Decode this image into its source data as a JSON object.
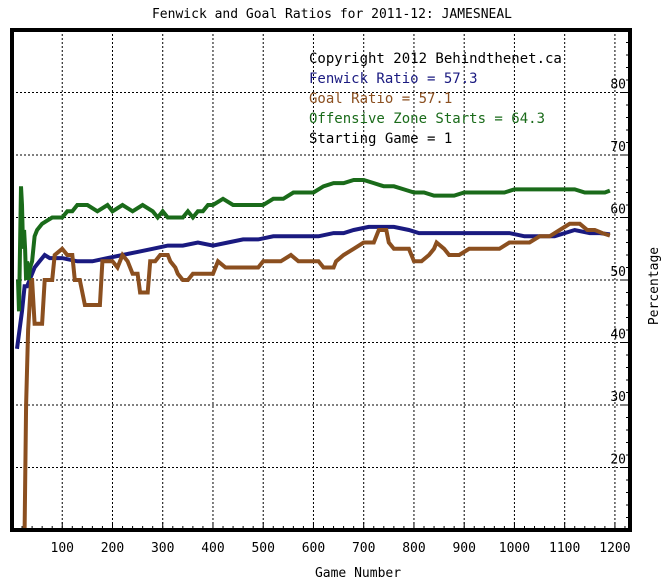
{
  "chart_data": {
    "type": "line",
    "title": "Fenwick and Goal Ratios for 2011-12: JAMESNEAL",
    "xlabel": "Game Number",
    "ylabel": "Percentage",
    "xlim": [
      0,
      1230
    ],
    "ylim": [
      10,
      90
    ],
    "x_ticks": [
      100,
      200,
      300,
      400,
      500,
      600,
      700,
      800,
      900,
      1000,
      1100,
      1200
    ],
    "y_ticks": [
      20,
      30,
      40,
      50,
      60,
      70,
      80
    ],
    "grid": true,
    "legend": {
      "position": "top-right",
      "lines": [
        {
          "text": "Copyright 2012 Behindthenet.ca",
          "color": "#000000"
        },
        {
          "text": "Fenwick Ratio = 57.3",
          "color": "#1a1a80"
        },
        {
          "text": "Goal Ratio = 57.1",
          "color": "#8b4f1f"
        },
        {
          "text": "Offensive Zone Starts = 64.3",
          "color": "#1a6b1a"
        },
        {
          "text": "Starting Game = 1",
          "color": "#000000"
        }
      ]
    },
    "series": [
      {
        "name": "Fenwick Ratio",
        "color": "#1a1a80",
        "points": [
          [
            10,
            39
          ],
          [
            15,
            42
          ],
          [
            20,
            45
          ],
          [
            25,
            49
          ],
          [
            30,
            49
          ],
          [
            35,
            50
          ],
          [
            45,
            52
          ],
          [
            55,
            53
          ],
          [
            65,
            54
          ],
          [
            75,
            53.5
          ],
          [
            100,
            53.5
          ],
          [
            130,
            53
          ],
          [
            160,
            53
          ],
          [
            190,
            53.5
          ],
          [
            220,
            54
          ],
          [
            250,
            54.5
          ],
          [
            280,
            55
          ],
          [
            310,
            55.5
          ],
          [
            340,
            55.5
          ],
          [
            370,
            56
          ],
          [
            400,
            55.5
          ],
          [
            430,
            56
          ],
          [
            460,
            56.5
          ],
          [
            490,
            56.5
          ],
          [
            520,
            57
          ],
          [
            550,
            57
          ],
          [
            580,
            57
          ],
          [
            610,
            57
          ],
          [
            640,
            57.5
          ],
          [
            660,
            57.5
          ],
          [
            680,
            58
          ],
          [
            710,
            58.5
          ],
          [
            730,
            58.5
          ],
          [
            760,
            58.5
          ],
          [
            790,
            58
          ],
          [
            810,
            57.5
          ],
          [
            840,
            57.5
          ],
          [
            870,
            57.5
          ],
          [
            900,
            57.5
          ],
          [
            930,
            57.5
          ],
          [
            960,
            57.5
          ],
          [
            990,
            57.5
          ],
          [
            1020,
            57
          ],
          [
            1050,
            57
          ],
          [
            1080,
            57
          ],
          [
            1100,
            57.5
          ],
          [
            1120,
            58
          ],
          [
            1150,
            57.5
          ],
          [
            1170,
            57.5
          ],
          [
            1190,
            57.3
          ]
        ]
      },
      {
        "name": "Goal Ratio",
        "color": "#8b4f1f",
        "points": [
          [
            25,
            10
          ],
          [
            28,
            30
          ],
          [
            32,
            42
          ],
          [
            35,
            46
          ],
          [
            38,
            50
          ],
          [
            40,
            50
          ],
          [
            45,
            43
          ],
          [
            60,
            43
          ],
          [
            65,
            50
          ],
          [
            80,
            50
          ],
          [
            85,
            54
          ],
          [
            100,
            55
          ],
          [
            110,
            54
          ],
          [
            120,
            54
          ],
          [
            125,
            50
          ],
          [
            135,
            50
          ],
          [
            145,
            46
          ],
          [
            175,
            46
          ],
          [
            180,
            53
          ],
          [
            200,
            53
          ],
          [
            210,
            52
          ],
          [
            215,
            53
          ],
          [
            220,
            54
          ],
          [
            230,
            53
          ],
          [
            240,
            51
          ],
          [
            250,
            51
          ],
          [
            255,
            48
          ],
          [
            270,
            48
          ],
          [
            275,
            53
          ],
          [
            285,
            53
          ],
          [
            295,
            54
          ],
          [
            310,
            54
          ],
          [
            315,
            53
          ],
          [
            325,
            52
          ],
          [
            330,
            51
          ],
          [
            340,
            50
          ],
          [
            350,
            50
          ],
          [
            360,
            51
          ],
          [
            375,
            51
          ],
          [
            390,
            51
          ],
          [
            400,
            51
          ],
          [
            405,
            52
          ],
          [
            410,
            53
          ],
          [
            425,
            52
          ],
          [
            440,
            52
          ],
          [
            460,
            52
          ],
          [
            475,
            52
          ],
          [
            490,
            52
          ],
          [
            500,
            53
          ],
          [
            515,
            53
          ],
          [
            535,
            53
          ],
          [
            555,
            54
          ],
          [
            570,
            53
          ],
          [
            590,
            53
          ],
          [
            610,
            53
          ],
          [
            620,
            52
          ],
          [
            640,
            52
          ],
          [
            645,
            53
          ],
          [
            660,
            54
          ],
          [
            680,
            55
          ],
          [
            700,
            56
          ],
          [
            720,
            56
          ],
          [
            730,
            58
          ],
          [
            745,
            58
          ],
          [
            750,
            56
          ],
          [
            760,
            55
          ],
          [
            770,
            55
          ],
          [
            790,
            55
          ],
          [
            800,
            53
          ],
          [
            815,
            53
          ],
          [
            830,
            54
          ],
          [
            840,
            55
          ],
          [
            845,
            56
          ],
          [
            860,
            55
          ],
          [
            870,
            54
          ],
          [
            890,
            54
          ],
          [
            910,
            55
          ],
          [
            930,
            55
          ],
          [
            950,
            55
          ],
          [
            970,
            55
          ],
          [
            990,
            56
          ],
          [
            1010,
            56
          ],
          [
            1030,
            56
          ],
          [
            1050,
            57
          ],
          [
            1070,
            57
          ],
          [
            1090,
            58
          ],
          [
            1110,
            59
          ],
          [
            1130,
            59
          ],
          [
            1145,
            58
          ],
          [
            1160,
            58
          ],
          [
            1175,
            57.5
          ],
          [
            1190,
            57.1
          ]
        ]
      },
      {
        "name": "Offensive Zone Starts",
        "color": "#1a6b1a",
        "points": [
          [
            12,
            50
          ],
          [
            14,
            45
          ],
          [
            16,
            55
          ],
          [
            18,
            65
          ],
          [
            20,
            62
          ],
          [
            22,
            55
          ],
          [
            24,
            58
          ],
          [
            26,
            55
          ],
          [
            28,
            50
          ],
          [
            30,
            53
          ],
          [
            33,
            50
          ],
          [
            36,
            52
          ],
          [
            40,
            53
          ],
          [
            45,
            57
          ],
          [
            50,
            58
          ],
          [
            60,
            59
          ],
          [
            70,
            59.5
          ],
          [
            80,
            60
          ],
          [
            90,
            60
          ],
          [
            100,
            60
          ],
          [
            110,
            61
          ],
          [
            120,
            61
          ],
          [
            130,
            62
          ],
          [
            150,
            62
          ],
          [
            170,
            61
          ],
          [
            190,
            62
          ],
          [
            200,
            61
          ],
          [
            220,
            62
          ],
          [
            240,
            61
          ],
          [
            260,
            62
          ],
          [
            280,
            61
          ],
          [
            290,
            60
          ],
          [
            300,
            61
          ],
          [
            310,
            60
          ],
          [
            320,
            60
          ],
          [
            330,
            60
          ],
          [
            340,
            60
          ],
          [
            350,
            61
          ],
          [
            360,
            60
          ],
          [
            370,
            61
          ],
          [
            380,
            61
          ],
          [
            390,
            62
          ],
          [
            400,
            62
          ],
          [
            420,
            63
          ],
          [
            440,
            62
          ],
          [
            460,
            62
          ],
          [
            480,
            62
          ],
          [
            500,
            62
          ],
          [
            520,
            63
          ],
          [
            540,
            63
          ],
          [
            560,
            64
          ],
          [
            580,
            64
          ],
          [
            600,
            64
          ],
          [
            620,
            65
          ],
          [
            640,
            65.5
          ],
          [
            660,
            65.5
          ],
          [
            680,
            66
          ],
          [
            700,
            66
          ],
          [
            720,
            65.5
          ],
          [
            740,
            65
          ],
          [
            760,
            65
          ],
          [
            780,
            64.5
          ],
          [
            800,
            64
          ],
          [
            820,
            64
          ],
          [
            840,
            63.5
          ],
          [
            860,
            63.5
          ],
          [
            880,
            63.5
          ],
          [
            900,
            64
          ],
          [
            920,
            64
          ],
          [
            940,
            64
          ],
          [
            960,
            64
          ],
          [
            980,
            64
          ],
          [
            1000,
            64.5
          ],
          [
            1020,
            64.5
          ],
          [
            1040,
            64.5
          ],
          [
            1060,
            64.5
          ],
          [
            1080,
            64.5
          ],
          [
            1100,
            64.5
          ],
          [
            1120,
            64.5
          ],
          [
            1140,
            64
          ],
          [
            1160,
            64
          ],
          [
            1180,
            64
          ],
          [
            1190,
            64.3
          ]
        ]
      }
    ]
  }
}
